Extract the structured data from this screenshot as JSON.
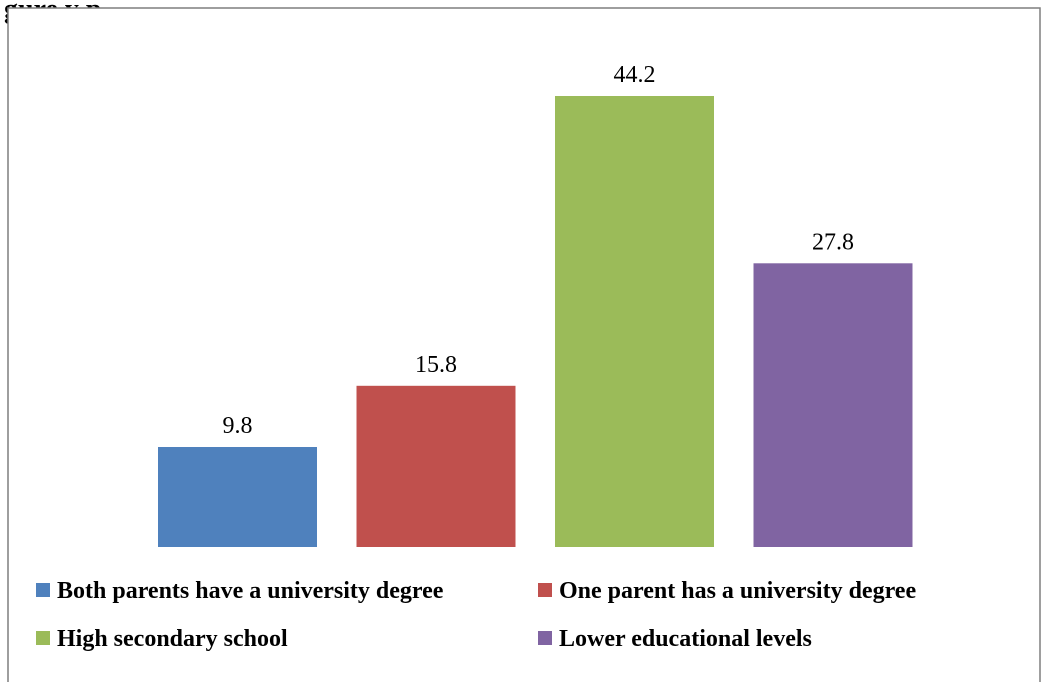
{
  "page": {
    "title_fragment": "gure         y p"
  },
  "chart_data": {
    "type": "bar",
    "categories": [
      "Both parents have a university degree",
      "One parent has a university degree",
      "High secondary school",
      "Lower educational levels"
    ],
    "values": [
      9.8,
      15.8,
      44.2,
      27.8
    ],
    "value_labels": [
      "9.8",
      "15.8",
      "44.2",
      "27.8"
    ],
    "colors": [
      "#4F81BD",
      "#C0504D",
      "#9BBB59",
      "#8064A2"
    ],
    "ylim": [
      0,
      50
    ],
    "grid": false,
    "legend_position": "bottom",
    "xlabel": "",
    "ylabel": ""
  }
}
